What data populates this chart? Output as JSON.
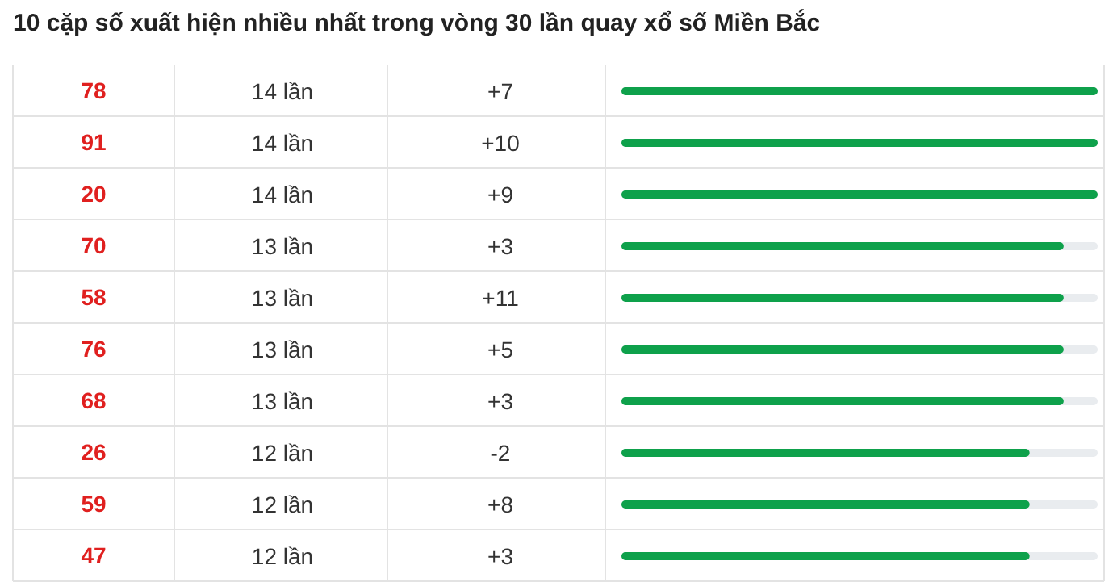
{
  "chart_data": {
    "type": "bar",
    "orientation": "horizontal",
    "title": "10 cặp số xuất hiện nhiều nhất trong vòng 30 lần quay xổ số Miền Bắc",
    "categories": [
      "78",
      "91",
      "20",
      "70",
      "58",
      "76",
      "68",
      "26",
      "59",
      "47"
    ],
    "values": [
      14,
      14,
      14,
      13,
      13,
      13,
      13,
      12,
      12,
      12
    ],
    "value_labels": [
      "14 lần",
      "14 lần",
      "14 lần",
      "13 lần",
      "13 lần",
      "13 lần",
      "13 lần",
      "12 lần",
      "12 lần",
      "12 lần"
    ],
    "color": "#0ea14b",
    "xlim": [
      0,
      14
    ],
    "tick_labels": false,
    "annotations": [
      "+7",
      "+10",
      "+9",
      "+3",
      "+11",
      "+5",
      "+3",
      "-2",
      "+8",
      "+3"
    ]
  }
}
